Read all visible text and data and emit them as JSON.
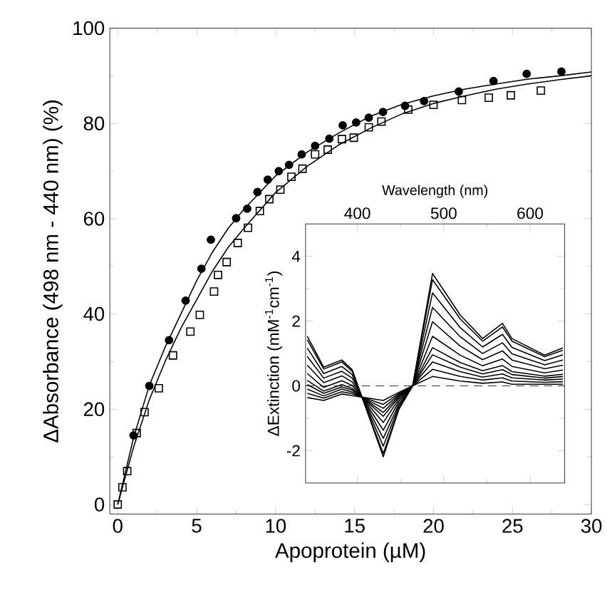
{
  "chart_data": [
    {
      "type": "scatter",
      "xlabel": "Apoprotein (µM)",
      "ylabel": "ΔAbsorbance (498 nm - 440 nm) (%)",
      "xlim": [
        -0.5,
        30
      ],
      "ylim": [
        -2,
        100
      ],
      "xticks": [
        0,
        5,
        10,
        15,
        20,
        25,
        30
      ],
      "yticks": [
        0,
        20,
        40,
        60,
        80,
        100
      ],
      "series": [
        {
          "type": "scatter",
          "marker": "circle",
          "color": "#000000",
          "x": [
            1.0,
            2.0,
            3.25,
            4.3,
            5.3,
            5.9,
            7.5,
            8.2,
            8.85,
            9.5,
            10.2,
            10.85,
            11.65,
            12.5,
            13.4,
            14.25,
            15.1,
            15.9,
            16.8,
            18.2,
            19.4,
            21.6,
            23.8,
            25.9,
            28.1
          ],
          "values": [
            14.5,
            24.9,
            34.5,
            42.8,
            49.5,
            55.6,
            60.1,
            62.1,
            65.6,
            68.2,
            70,
            71.3,
            73.5,
            75.3,
            76.8,
            79.6,
            80.2,
            81.2,
            82.4,
            83.7,
            84.7,
            86.7,
            88.9,
            90.4,
            90.9
          ]
        },
        {
          "type": "scatter",
          "marker": "square",
          "color": "#000000",
          "x": [
            0,
            0.3,
            0.6,
            1.2,
            1.7,
            2.6,
            3.5,
            4.6,
            5.2,
            6.1,
            6.35,
            6.9,
            7.6,
            8.25,
            9.0,
            9.6,
            10.3,
            11,
            11.7,
            12.5,
            13.3,
            14.2,
            14.95,
            15.9,
            16.7,
            18.4,
            20,
            21.8,
            23.5,
            24.9,
            26.8
          ],
          "values": [
            0,
            3.6,
            7,
            15,
            19.4,
            24.4,
            31.3,
            36.3,
            39.8,
            44.7,
            48.2,
            50.9,
            54.9,
            58.1,
            61.6,
            64.1,
            66.1,
            68.8,
            70.5,
            73.5,
            74.5,
            76.7,
            77,
            79.2,
            80.4,
            82.9,
            83.9,
            84.9,
            85.4,
            85.9,
            86.9
          ]
        },
        {
          "type": "line",
          "marker": "none",
          "color": "#000000",
          "x": [
            0,
            1,
            2,
            3,
            4,
            5,
            6,
            7,
            8,
            10,
            12,
            14,
            16,
            18,
            20,
            22,
            24,
            26,
            28,
            30
          ],
          "values": [
            0,
            14,
            25,
            33,
            40,
            47,
            53,
            58,
            62,
            69,
            74,
            78,
            81.5,
            84,
            85.8,
            87.2,
            88.3,
            89.3,
            90,
            90.8
          ]
        },
        {
          "type": "line",
          "marker": "none",
          "color": "#000000",
          "x": [
            0,
            1,
            2,
            3,
            4,
            5,
            6,
            7,
            8,
            10,
            12,
            14,
            16,
            18,
            20,
            22,
            24,
            26,
            28,
            30
          ],
          "values": [
            0,
            12,
            22,
            30,
            37,
            43,
            49,
            54,
            58,
            65.5,
            71,
            75.5,
            79,
            82,
            84.2,
            85.8,
            87.2,
            88.3,
            89.2,
            90
          ]
        }
      ]
    },
    {
      "type": "line",
      "xlabel": "Wavelength (nm)",
      "ylabel": "ΔExtinction (mM$^{-1}$cm$^{-1}$)",
      "xlim": [
        340,
        640
      ],
      "ylim": [
        -3,
        5
      ],
      "xticks": [
        400,
        500,
        600
      ],
      "yticks": [
        -2,
        0,
        2,
        4
      ],
      "ref_lines": [
        {
          "axis": "y",
          "value": 0,
          "line_style": "dashed",
          "color": "#000000"
        }
      ],
      "x": [
        342,
        361,
        382,
        394,
        430,
        448,
        464,
        487,
        519,
        545,
        568,
        579,
        617,
        638
      ],
      "series": [
        {
          "color": "#000000",
          "values": [
            1.53,
            0.58,
            0.8,
            0.5,
            -2.19,
            -0.73,
            0,
            3.47,
            2.19,
            1.46,
            1.93,
            1.46,
            0.95,
            1.17
          ]
        },
        {
          "color": "#000000",
          "values": [
            1.42,
            0.52,
            0.74,
            0.45,
            -2.09,
            -0.7,
            0,
            3.28,
            2.07,
            1.38,
            1.82,
            1.38,
            0.9,
            1.1
          ]
        },
        {
          "color": "#000000",
          "values": [
            1.17,
            0.38,
            0.6,
            0.35,
            -1.86,
            -0.63,
            0,
            2.87,
            1.8,
            1.2,
            1.59,
            1.19,
            0.78,
            0.96
          ]
        },
        {
          "color": "#000000",
          "values": [
            0.91,
            0.24,
            0.45,
            0.24,
            -1.62,
            -0.56,
            0,
            2.42,
            1.52,
            1.0,
            1.33,
            0.99,
            0.65,
            0.8
          ]
        },
        {
          "color": "#000000",
          "values": [
            0.64,
            0.1,
            0.31,
            0.12,
            -1.37,
            -0.48,
            0,
            1.98,
            1.23,
            0.81,
            1.08,
            0.8,
            0.53,
            0.64
          ]
        },
        {
          "color": "#000000",
          "values": [
            0.38,
            -0.05,
            0.16,
            0.01,
            -1.13,
            -0.41,
            0,
            1.53,
            0.95,
            0.62,
            0.83,
            0.6,
            0.4,
            0.49
          ]
        },
        {
          "color": "#000000",
          "values": [
            0.17,
            -0.16,
            0.04,
            -0.08,
            -0.94,
            -0.35,
            0,
            1.18,
            0.72,
            0.47,
            0.63,
            0.44,
            0.3,
            0.36
          ]
        },
        {
          "color": "#000000",
          "values": [
            0.04,
            -0.23,
            -0.03,
            -0.13,
            -0.82,
            -0.31,
            0,
            0.96,
            0.58,
            0.37,
            0.5,
            0.35,
            0.24,
            0.29
          ]
        },
        {
          "color": "#000000",
          "values": [
            -0.1,
            -0.31,
            -0.1,
            -0.19,
            -0.69,
            -0.27,
            0,
            0.74,
            0.44,
            0.27,
            0.37,
            0.25,
            0.18,
            0.21
          ]
        },
        {
          "color": "#000000",
          "values": [
            -0.23,
            -0.38,
            -0.18,
            -0.24,
            -0.57,
            -0.24,
            0,
            0.51,
            0.29,
            0.18,
            0.25,
            0.15,
            0.11,
            0.13
          ]
        },
        {
          "color": "#000000",
          "values": [
            -0.36,
            -0.45,
            -0.25,
            -0.3,
            -0.45,
            -0.2,
            0,
            0.29,
            0.15,
            0.08,
            0.12,
            0.05,
            0.05,
            0.05
          ]
        }
      ]
    }
  ]
}
